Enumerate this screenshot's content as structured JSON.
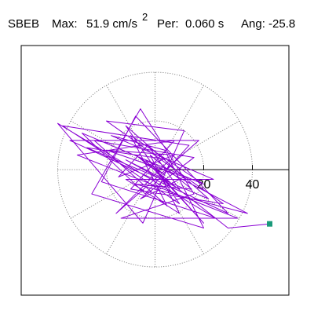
{
  "chart_data": {
    "type": "line",
    "header": {
      "station": "SBEB",
      "max_label": "Max:",
      "max_value": "51.9 cm/s",
      "max_exp": "2",
      "per_label": "Per:",
      "per_value": "0.060 s",
      "ang": "Ang: -25.8"
    },
    "xlim": [
      -55,
      55
    ],
    "ylim": [
      -51.6,
      51
    ],
    "rticks": [
      20,
      40
    ],
    "spoke_step_deg": 30,
    "series": [
      {
        "color": "#8a00d4",
        "end_marker_color": "#1a9a7a",
        "x": [
          0,
          -5,
          4,
          -8,
          6,
          -12,
          10,
          -3,
          -15,
          8,
          -20,
          12,
          -6,
          16,
          -25,
          5,
          -10,
          20,
          -30,
          -4,
          14,
          -38,
          -18,
          10,
          -12,
          22,
          -28,
          6,
          -16,
          18,
          -35,
          30,
          -8,
          -22,
          25,
          -40,
          -5,
          12,
          -20,
          28,
          -10,
          8,
          -32,
          34,
          -14,
          16,
          -6,
          -26,
          20,
          4,
          -18,
          24,
          -12,
          10,
          -2,
          15,
          -8,
          38,
          -4,
          20,
          2,
          30,
          47.1
        ],
        "y": [
          0,
          3,
          -2,
          6,
          -5,
          4,
          -8,
          10,
          -3,
          6,
          8,
          -3,
          -12,
          5,
          12,
          -15,
          14,
          -6,
          15,
          -10,
          10,
          18,
          5,
          -14,
          18,
          -12,
          9,
          4,
          -18,
          12,
          12,
          -18,
          22,
          -5,
          -20,
          19,
          -22,
          16,
          20,
          -14,
          -8,
          12,
          6,
          -20,
          -20,
          -10,
          25,
          -10,
          -24,
          8,
          14,
          -4,
          -4,
          -18,
          6,
          -8,
          -6,
          -18,
          4,
          -22,
          -2,
          -24,
          -22.3
        ]
      }
    ]
  }
}
